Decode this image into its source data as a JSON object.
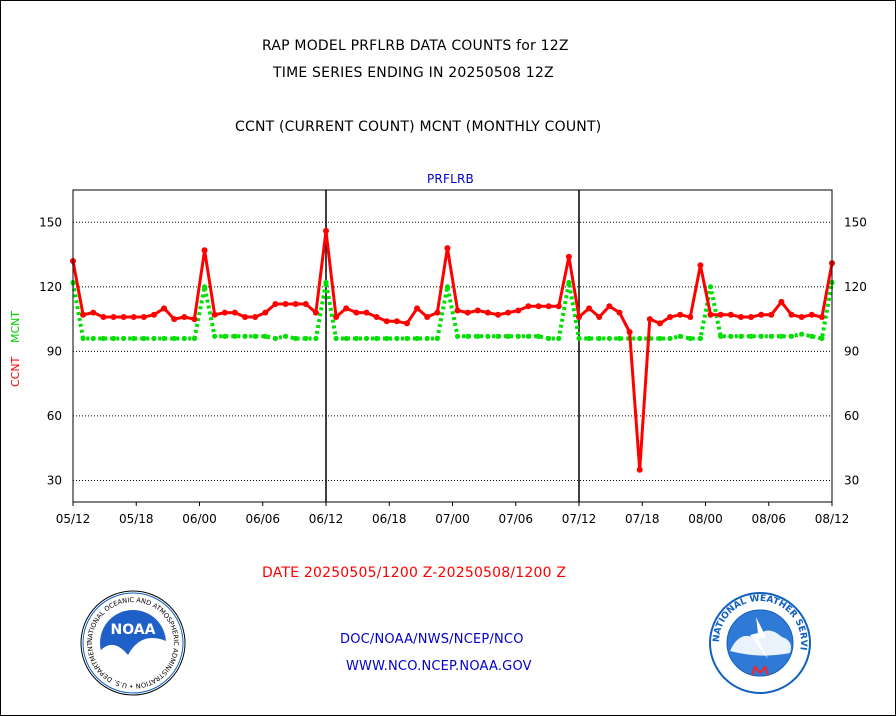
{
  "header": {
    "title_line1": "RAP MODEL PRFLRB DATA COUNTS for 12Z",
    "title_line2": "TIME SERIES ENDING IN 20250508 12Z",
    "subtitle": "CCNT (CURRENT COUNT) MCNT (MONTHLY COUNT)",
    "date_range": "DATE 20250505/1200 Z-20250508/1200 Z"
  },
  "footer": {
    "line1": "DOC/NOAA/NWS/NCEP/NCO",
    "line2": "WWW.NCO.NCEP.NOAA.GOV",
    "noaa_logo_text": "NOAA",
    "noaa_ring_text": "NATIONAL OCEANIC AND ATMOSPHERIC ADMINISTRATION • U.S. DEPARTMENT OF COMMERCE •",
    "nws_ring_text": "NATIONAL WEATHER SERVICE"
  },
  "colors": {
    "ccnt": "#ff0000",
    "mcnt": "#00e000",
    "panel_title": "#0000cc",
    "footer_text": "#0000cc",
    "date_text": "#ff0000"
  },
  "chart_data": {
    "type": "line",
    "panel_title": "PRFLRB",
    "ylabel_ccnt": "CCNT",
    "ylabel_mcnt": "MCNT",
    "ylim": [
      20,
      165
    ],
    "yticks": [
      30,
      60,
      90,
      120,
      150
    ],
    "xlim": [
      0,
      72
    ],
    "xticks": [
      {
        "x": 0,
        "label": "05/12"
      },
      {
        "x": 6,
        "label": "05/18"
      },
      {
        "x": 12,
        "label": "06/00"
      },
      {
        "x": 18,
        "label": "06/06"
      },
      {
        "x": 24,
        "label": "06/12"
      },
      {
        "x": 30,
        "label": "06/18"
      },
      {
        "x": 36,
        "label": "07/00"
      },
      {
        "x": 42,
        "label": "07/06"
      },
      {
        "x": 48,
        "label": "07/12"
      },
      {
        "x": 54,
        "label": "07/18"
      },
      {
        "x": 60,
        "label": "08/00"
      },
      {
        "x": 66,
        "label": "08/06"
      },
      {
        "x": 72,
        "label": "08/12"
      }
    ],
    "day_boundaries": [
      24,
      48
    ],
    "grid": true,
    "series": [
      {
        "name": "CCNT",
        "style": "solid",
        "values": [
          132,
          107,
          108,
          106,
          106,
          106,
          106,
          106,
          107,
          110,
          105,
          106,
          105,
          137,
          107,
          108,
          108,
          106,
          106,
          108,
          112,
          112,
          112,
          112,
          108,
          146,
          106,
          110,
          108,
          108,
          106,
          104,
          104,
          103,
          110,
          106,
          108,
          138,
          109,
          108,
          109,
          108,
          107,
          108,
          109,
          111,
          111,
          111,
          111,
          134,
          106,
          110,
          106,
          111,
          108,
          99,
          35,
          105,
          103,
          106,
          107,
          106,
          130,
          107,
          107,
          107,
          106,
          106,
          107,
          107,
          113,
          107,
          106,
          107,
          106,
          131
        ]
      },
      {
        "name": "MCNT",
        "style": "dotted",
        "values": [
          122,
          96,
          96,
          96,
          96,
          96,
          96,
          96,
          96,
          96,
          96,
          96,
          96,
          120,
          97,
          97,
          97,
          97,
          97,
          97,
          96,
          97,
          96,
          96,
          96,
          122,
          96,
          96,
          96,
          96,
          96,
          96,
          96,
          96,
          96,
          96,
          96,
          120,
          97,
          97,
          97,
          97,
          97,
          97,
          97,
          97,
          97,
          96,
          96,
          122,
          96,
          96,
          96,
          96,
          96,
          96,
          96,
          96,
          96,
          96,
          97,
          96,
          96,
          120,
          97,
          97,
          97,
          97,
          97,
          97,
          97,
          97,
          98,
          97,
          96,
          122
        ]
      }
    ]
  }
}
